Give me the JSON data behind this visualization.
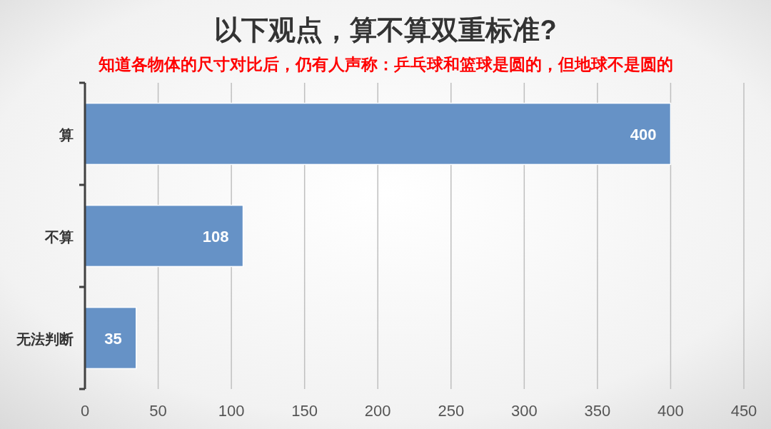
{
  "chart_data": {
    "type": "bar",
    "orientation": "horizontal",
    "title": "以下观点，算不算双重标准?",
    "subtitle": "知道各物体的尺寸对比后，仍有人声称：乒乓球和篮球是圆的，但地球不是圆的",
    "categories": [
      "算",
      "不算",
      "无法判断"
    ],
    "values": [
      400,
      108,
      35
    ],
    "color": "#6692c6",
    "xlim": [
      0,
      450
    ],
    "xticks": [
      0,
      50,
      100,
      150,
      200,
      250,
      300,
      350,
      400,
      450
    ],
    "grid": "x",
    "data_labels": true
  }
}
